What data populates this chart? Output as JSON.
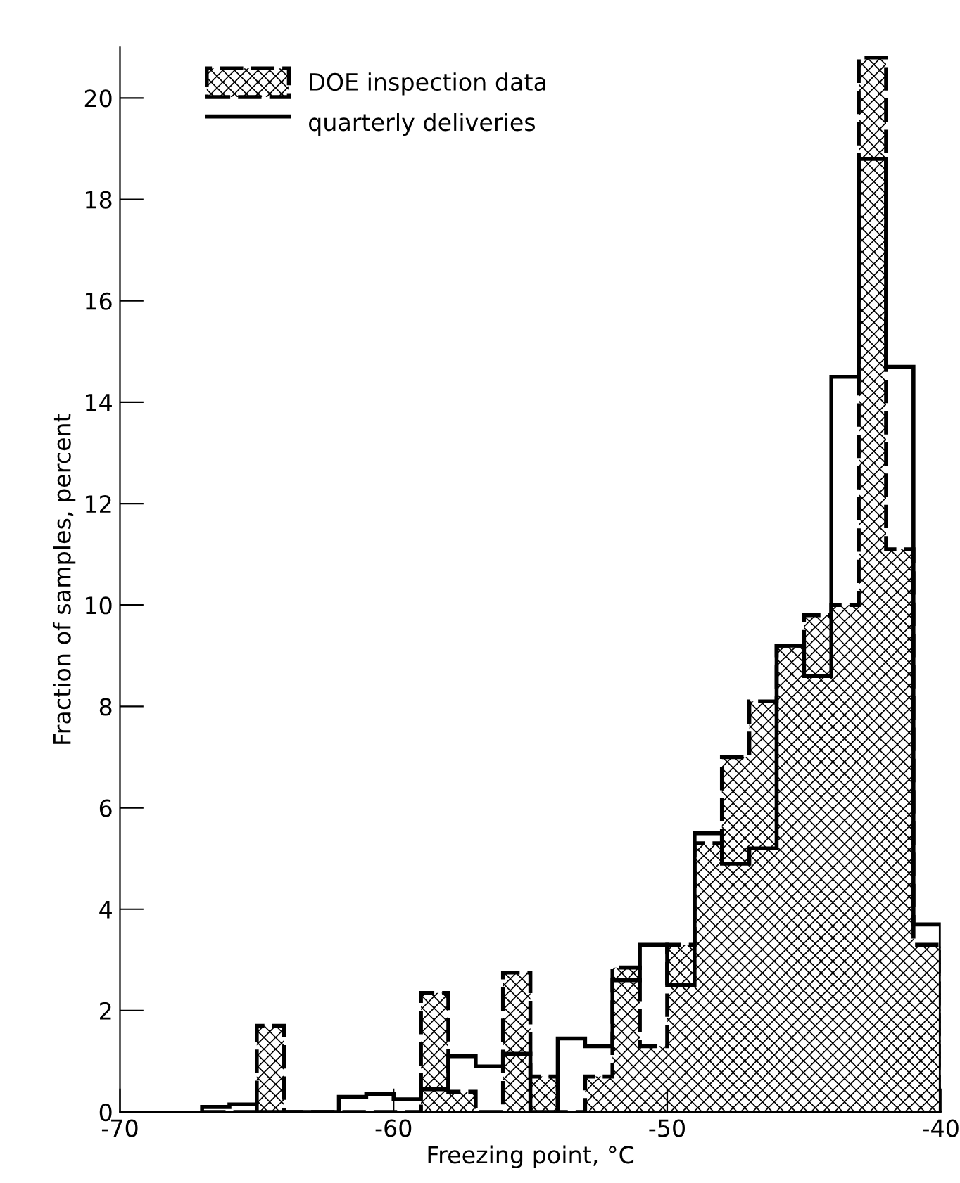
{
  "chart_data": {
    "type": "histogram",
    "xlabel": "Freezing point, °C",
    "ylabel": "Fraction of samples, percent",
    "bins": [
      -67,
      -66,
      -65,
      -64,
      -63,
      -62,
      -61,
      -60,
      -59,
      -58,
      -57,
      -56,
      -55,
      -54,
      -53,
      -52,
      -51,
      -50,
      -49,
      -48,
      -47,
      -46,
      -45,
      -44,
      -43,
      -42,
      -41,
      -40
    ],
    "series": [
      {
        "name": "DOE inspection data",
        "color": "#000000",
        "line_style": "dashed",
        "values": [
          0,
          0,
          1.7,
          0,
          0,
          0,
          0,
          0,
          2.35,
          0.4,
          0,
          2.75,
          0.7,
          0,
          0.7,
          2.85,
          1.3,
          3.3,
          5.3,
          7.0,
          8.1,
          9.2,
          9.8,
          10.0,
          20.8,
          11.1,
          3.3
        ]
      },
      {
        "name": "quarterly deliveries",
        "color": "#000000",
        "line_style": "solid",
        "values": [
          0.1,
          0.15,
          0,
          0,
          0,
          0.3,
          0.35,
          0.25,
          0.45,
          1.1,
          0.9,
          1.15,
          0,
          1.45,
          1.3,
          2.6,
          3.3,
          2.5,
          5.5,
          4.9,
          5.2,
          9.2,
          8.6,
          14.5,
          18.8,
          14.7,
          3.7
        ]
      }
    ],
    "xlim": [
      -70,
      -40
    ],
    "xticks": [
      -70,
      -60,
      -50,
      -40
    ],
    "ylim": [
      0,
      21
    ],
    "yticks": [
      0,
      2,
      4,
      6,
      8,
      10,
      12,
      14,
      16,
      18,
      20
    ],
    "grid": false,
    "legend": "top left"
  }
}
